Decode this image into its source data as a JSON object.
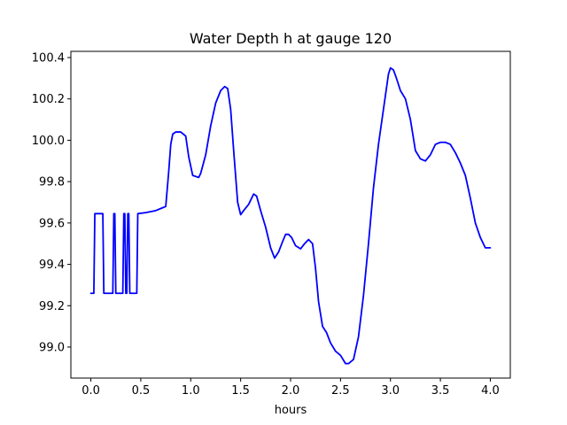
{
  "chart_data": {
    "type": "line",
    "title": "Water Depth h at gauge 120",
    "xlabel": "hours",
    "ylabel": "",
    "xlim": [
      -0.2,
      4.2
    ],
    "ylim": [
      98.85,
      100.43
    ],
    "xticks": [
      0.0,
      0.5,
      1.0,
      1.5,
      2.0,
      2.5,
      3.0,
      3.5,
      4.0
    ],
    "xtick_labels": [
      "0.0",
      "0.5",
      "1.0",
      "1.5",
      "2.0",
      "2.5",
      "3.0",
      "3.5",
      "4.0"
    ],
    "yticks": [
      99.0,
      99.2,
      99.4,
      99.6,
      99.8,
      100.0,
      100.2,
      100.4
    ],
    "ytick_labels": [
      "99.0",
      "99.2",
      "99.4",
      "99.6",
      "99.8",
      "100.0",
      "100.2",
      "100.4"
    ],
    "grid": false,
    "colors": {
      "line": "#0000ff",
      "axes": "#000000",
      "background": "#ffffff"
    },
    "series": [
      {
        "x": [
          0.0,
          0.02,
          0.03,
          0.04,
          0.12,
          0.13,
          0.22,
          0.23,
          0.24,
          0.25,
          0.32,
          0.33,
          0.34,
          0.35,
          0.36,
          0.37,
          0.38,
          0.39,
          0.4,
          0.41,
          0.46,
          0.47,
          0.55,
          0.65,
          0.7,
          0.75,
          0.78,
          0.8,
          0.82,
          0.85,
          0.9,
          0.95,
          0.98,
          1.02,
          1.08,
          1.1,
          1.15,
          1.2,
          1.25,
          1.3,
          1.34,
          1.37,
          1.4,
          1.43,
          1.47,
          1.5,
          1.53,
          1.58,
          1.63,
          1.66,
          1.7,
          1.75,
          1.8,
          1.84,
          1.88,
          1.92,
          1.95,
          1.98,
          2.01,
          2.05,
          2.1,
          2.14,
          2.18,
          2.22,
          2.25,
          2.28,
          2.32,
          2.36,
          2.4,
          2.45,
          2.5,
          2.55,
          2.58,
          2.63,
          2.68,
          2.73,
          2.78,
          2.83,
          2.88,
          2.93,
          2.98,
          3.0,
          3.03,
          3.06,
          3.1,
          3.15,
          3.2,
          3.25,
          3.3,
          3.35,
          3.4,
          3.45,
          3.5,
          3.55,
          3.6,
          3.65,
          3.7,
          3.75,
          3.8,
          3.85,
          3.9,
          3.95,
          4.0
        ],
        "y": [
          99.26,
          99.26,
          99.26,
          99.645,
          99.645,
          99.26,
          99.26,
          99.645,
          99.645,
          99.26,
          99.26,
          99.645,
          99.645,
          99.26,
          99.26,
          99.645,
          99.645,
          99.26,
          99.26,
          99.26,
          99.26,
          99.645,
          99.65,
          99.66,
          99.67,
          99.68,
          99.85,
          99.98,
          100.03,
          100.04,
          100.04,
          100.02,
          99.92,
          99.83,
          99.82,
          99.84,
          99.93,
          100.07,
          100.18,
          100.24,
          100.26,
          100.25,
          100.15,
          99.95,
          99.7,
          99.64,
          99.66,
          99.69,
          99.74,
          99.73,
          99.66,
          99.58,
          99.48,
          99.43,
          99.46,
          99.51,
          99.545,
          99.545,
          99.53,
          99.49,
          99.475,
          99.5,
          99.52,
          99.5,
          99.38,
          99.22,
          99.1,
          99.07,
          99.02,
          98.98,
          98.96,
          98.92,
          98.92,
          98.94,
          99.05,
          99.25,
          99.5,
          99.77,
          99.98,
          100.15,
          100.32,
          100.35,
          100.34,
          100.3,
          100.24,
          100.2,
          100.1,
          99.95,
          99.91,
          99.9,
          99.93,
          99.98,
          99.99,
          99.99,
          99.98,
          99.94,
          99.89,
          99.83,
          99.72,
          99.6,
          99.53,
          99.48,
          99.48
        ]
      }
    ]
  }
}
